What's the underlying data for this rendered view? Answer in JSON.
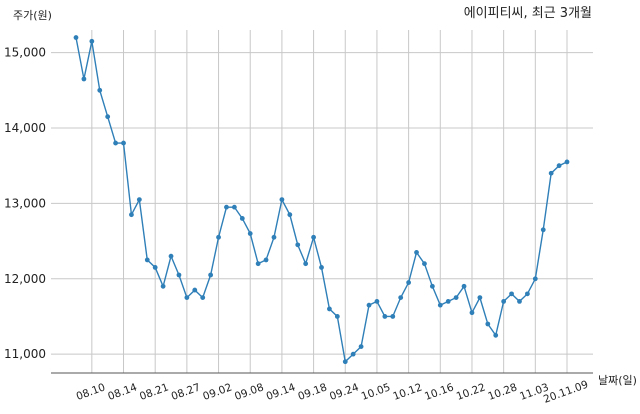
{
  "chart_data": {
    "type": "line",
    "title": "에이피티씨, 최근 3개월",
    "ylabel": "주가(원)",
    "xlabel": "날짜(일)",
    "ylim": [
      10750,
      15300
    ],
    "grid": true,
    "y_ticks": [
      11000,
      12000,
      13000,
      14000,
      15000
    ],
    "y_tick_labels": [
      "11,000",
      "12,000",
      "13,000",
      "14,000",
      "15,000"
    ],
    "x_tick_labels": [
      "08.10",
      "08.14",
      "08.21",
      "08.27",
      "09.02",
      "09.08",
      "09.14",
      "09.18",
      "09.24",
      "10.05",
      "10.12",
      "10.16",
      "10.22",
      "10.28",
      "11.03",
      "20.11.09"
    ],
    "x_tick_indices": [
      2,
      6,
      10,
      14,
      18,
      22,
      26,
      30,
      34,
      38,
      42,
      46,
      50,
      54,
      58,
      62
    ],
    "series": [
      {
        "color": "#2f7fb8",
        "values": [
          15200,
          14650,
          15150,
          14500,
          14150,
          13800,
          13800,
          12850,
          13050,
          12250,
          12150,
          11900,
          12300,
          12050,
          11750,
          11850,
          11750,
          12050,
          12550,
          12950,
          12950,
          12800,
          12600,
          12200,
          12250,
          12550,
          13050,
          12850,
          12450,
          12200,
          12550,
          12150,
          11600,
          11500,
          10900,
          11000,
          11100,
          11650,
          11700,
          11500,
          11500,
          11750,
          11950,
          12350,
          12200,
          11900,
          11650,
          11700,
          11750,
          11900,
          11550,
          11750,
          11400,
          11250,
          11700,
          11800,
          11700,
          11800,
          12000,
          12650,
          13400,
          13500,
          13550
        ]
      }
    ]
  }
}
